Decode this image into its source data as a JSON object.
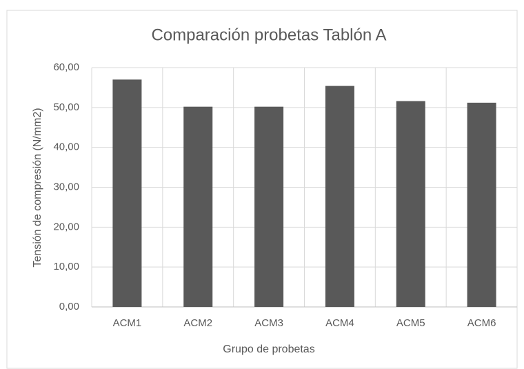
{
  "chart_data": {
    "type": "bar",
    "title": "Comparación probetas Tablón A",
    "x_label": "Grupo de probetas",
    "y_label": "Tensión de compresión (N/mm2)",
    "categories": [
      "ACM1",
      "ACM2",
      "ACM3",
      "ACM4",
      "ACM5",
      "ACM6"
    ],
    "values": [
      57,
      50.2,
      50.2,
      55.4,
      51.6,
      51.2
    ],
    "color": "#595959",
    "ylim": [
      0,
      60
    ],
    "yticks": [
      {
        "value": 0,
        "label": "0,00"
      },
      {
        "value": 10,
        "label": "10,00"
      },
      {
        "value": 20,
        "label": "20,00"
      },
      {
        "value": 30,
        "label": "30,00"
      },
      {
        "value": 40,
        "label": "40,00"
      },
      {
        "value": 50,
        "label": "50,00"
      },
      {
        "value": 60,
        "label": "60,00"
      }
    ],
    "grid": true
  }
}
